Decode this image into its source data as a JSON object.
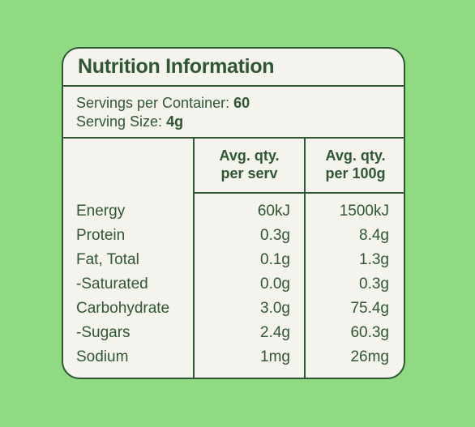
{
  "title": "Nutrition Information",
  "servings": {
    "per_container_label": "Servings per Container:",
    "per_container_value": "60",
    "size_label": "Serving Size:",
    "size_value": "4g"
  },
  "columns": {
    "serv_line1": "Avg. qty.",
    "serv_line2": "per serv",
    "hundred_line1": "Avg. qty.",
    "hundred_line2": "per 100g"
  },
  "rows": [
    {
      "name": "Energy",
      "per_serv": "60kJ",
      "per_100g": "1500kJ"
    },
    {
      "name": "Protein",
      "per_serv": "0.3g",
      "per_100g": "8.4g"
    },
    {
      "name": "Fat, Total",
      "per_serv": "0.1g",
      "per_100g": "1.3g"
    },
    {
      "name": "-Saturated",
      "per_serv": "0.0g",
      "per_100g": "0.3g"
    },
    {
      "name": "Carbohydrate",
      "per_serv": "3.0g",
      "per_100g": "75.4g"
    },
    {
      "name": "-Sugars",
      "per_serv": "2.4g",
      "per_100g": "60.3g"
    },
    {
      "name": "Sodium",
      "per_serv": "1mg",
      "per_100g": "26mg"
    }
  ],
  "colors": {
    "background": "#8fda83",
    "panel": "#f4f3ee",
    "ink": "#2f5733"
  }
}
